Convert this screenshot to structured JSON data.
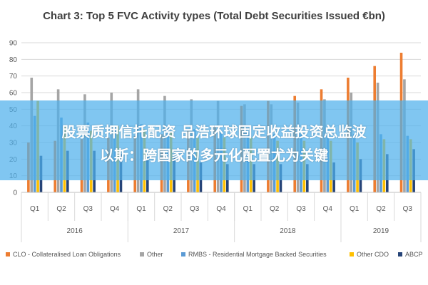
{
  "chart_data": {
    "type": "bar",
    "title": "Chart 3: Top 5 FVC Activity types (Total Debt Securities Issued €bn)",
    "ylim": [
      0,
      90
    ],
    "yticks": [
      0,
      10,
      20,
      30,
      40,
      50,
      60,
      70,
      80,
      90
    ],
    "categories": [
      "Q1",
      "Q2",
      "Q3",
      "Q4",
      "Q1",
      "Q2",
      "Q3",
      "Q4",
      "Q1",
      "Q2",
      "Q3",
      "Q4",
      "Q1",
      "Q2",
      "Q3"
    ],
    "years": [
      {
        "label": "2016",
        "start": 0,
        "count": 4
      },
      {
        "label": "2017",
        "start": 4,
        "count": 4
      },
      {
        "label": "2018",
        "start": 8,
        "count": 4
      },
      {
        "label": "2019",
        "start": 12,
        "count": 3
      }
    ],
    "grid": true,
    "legend_position": "bottom",
    "series": [
      {
        "name": "CLO - Collateralised Loan Obligations",
        "color": "#ED7D31",
        "values": [
          30,
          31,
          32,
          33,
          34,
          35,
          37,
          40,
          52,
          55,
          58,
          62,
          69,
          76,
          84
        ]
      },
      {
        "name": "Other",
        "color": "#A5A5A5",
        "values": [
          69,
          62,
          59,
          60,
          62,
          58,
          56,
          55,
          53,
          53,
          54,
          56,
          60,
          66,
          68
        ]
      },
      {
        "name": "RMBS - Residential Mortgage Backed Securities",
        "color": "#5B9BD5",
        "values": [
          46,
          45,
          42,
          40,
          41,
          40,
          38,
          36,
          36,
          35,
          35,
          35,
          35,
          35,
          34
        ]
      },
      {
        "name": "Other CDO",
        "color": "#FFC000",
        "values": [
          55,
          40,
          37,
          40,
          38,
          36,
          33,
          33,
          33,
          31,
          31,
          31,
          30,
          32,
          32
        ]
      },
      {
        "name": "ABCP",
        "color": "#264478",
        "values": [
          22,
          25,
          25,
          23,
          21,
          21,
          18,
          17,
          17,
          17,
          17,
          18,
          20,
          23,
          26
        ]
      }
    ]
  },
  "overlay": {
    "line1": "股票质押信托配资 品浩环球固定收益投资总监波",
    "line2": "以斯：跨国家的多元化配置尤为关键"
  }
}
